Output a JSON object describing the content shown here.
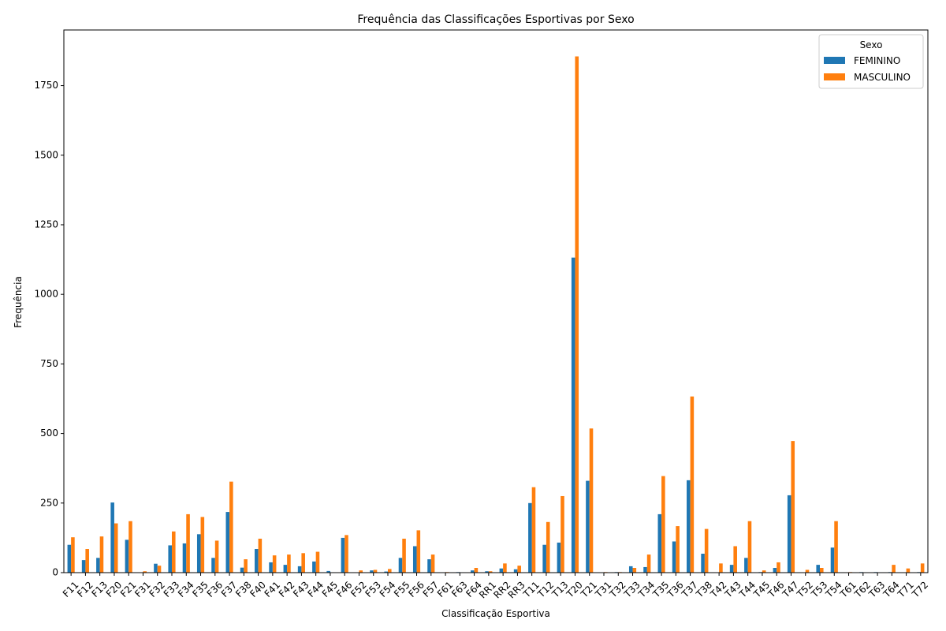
{
  "chart_data": {
    "type": "bar",
    "title": "Frequência das Classificações Esportivas por Sexo",
    "xlabel": "Classificação Esportiva",
    "ylabel": "Frequência",
    "ylim": [
      0,
      1950
    ],
    "yticks": [
      0,
      250,
      500,
      750,
      1000,
      1250,
      1500,
      1750
    ],
    "grid": false,
    "legend": {
      "title": "Sexo",
      "placement": "top-right"
    },
    "categories": [
      "F11",
      "F12",
      "F13",
      "F20",
      "F21",
      "F31",
      "F32",
      "F33",
      "F34",
      "F35",
      "F36",
      "F37",
      "F38",
      "F40",
      "F41",
      "F42",
      "F43",
      "F44",
      "F45",
      "F46",
      "F52",
      "F53",
      "F54",
      "F55",
      "F56",
      "F57",
      "F61",
      "F63",
      "F64",
      "RR1",
      "RR2",
      "RR3",
      "T11",
      "T12",
      "T13",
      "T20",
      "T21",
      "T31",
      "T32",
      "T33",
      "T34",
      "T35",
      "T36",
      "T37",
      "T38",
      "T42",
      "T43",
      "T44",
      "T45",
      "T46",
      "T47",
      "T52",
      "T53",
      "T54",
      "T61",
      "T62",
      "T63",
      "T64",
      "T71",
      "T72"
    ],
    "series": [
      {
        "name": "FEMININO",
        "color": "#1f77b4",
        "values": [
          100,
          45,
          53,
          252,
          118,
          0,
          32,
          98,
          105,
          138,
          53,
          218,
          18,
          85,
          37,
          28,
          23,
          40,
          6,
          125,
          0,
          8,
          4,
          53,
          95,
          48,
          0,
          2,
          8,
          5,
          15,
          12,
          250,
          100,
          108,
          1132,
          330,
          0,
          2,
          23,
          20,
          210,
          112,
          332,
          68,
          0,
          28,
          53,
          2,
          17,
          278,
          0,
          28,
          90,
          0,
          2,
          2,
          2,
          0,
          2
        ]
      },
      {
        "name": "MASCULINO",
        "color": "#ff7f0e",
        "values": [
          127,
          85,
          130,
          177,
          185,
          5,
          25,
          148,
          210,
          200,
          115,
          327,
          48,
          122,
          62,
          65,
          70,
          75,
          0,
          135,
          8,
          10,
          13,
          122,
          152,
          65,
          2,
          0,
          17,
          5,
          33,
          25,
          307,
          182,
          275,
          1855,
          518,
          2,
          2,
          17,
          65,
          347,
          167,
          633,
          157,
          33,
          95,
          185,
          8,
          37,
          473,
          10,
          17,
          185,
          2,
          0,
          0,
          28,
          15,
          33
        ]
      }
    ]
  }
}
